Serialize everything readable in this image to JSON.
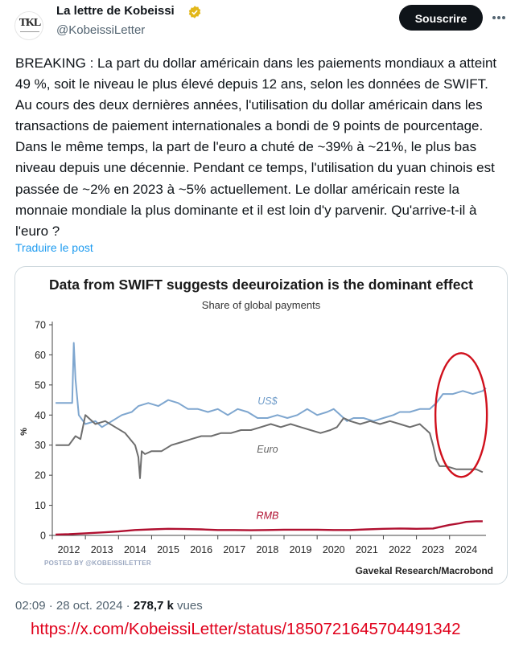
{
  "tweet": {
    "display_name": "La lettre de Kobeissi",
    "handle": "@KobeissiLetter",
    "avatar_text": "TKL",
    "follow_label": "Souscrire",
    "text": "BREAKING : La part du dollar américain dans les paiements mondiaux a atteint 49 %, soit le niveau le plus élevé depuis 12 ans, selon les données de SWIFT. Au cours des deux dernières années, l'utilisation du dollar américain dans les transactions de paiement internationales a bondi de 9 points de pourcentage. Dans le même temps, la part de l'euro a chuté de ~39% à ~21%, le plus bas niveau depuis une décennie. Pendant ce temps, l'utilisation du yuan chinois est passée de ~2% en 2023 à ~5% actuellement. Le dollar américain reste la monnaie mondiale la plus dominante et il est loin d'y parvenir. Qu'arrive-t-il à l'euro ?",
    "translate_label": "Traduire le post",
    "time": "02:09",
    "date": "28 oct. 2024",
    "views_count": "278,7 k",
    "views_label": "vues",
    "url": "https://x.com/KobeissiLetter/status/1850721645704491342"
  },
  "colors": {
    "usd": "#7ea6cf",
    "euro": "#6e6e6e",
    "rmb": "#b01030",
    "highlight_circle": "#d0101c",
    "verified": "#e2b719"
  },
  "chart_data": {
    "type": "line",
    "title": "Data from SWIFT suggests deeuroization is the dominant effect",
    "subtitle": "Share of global payments",
    "ylabel": "%",
    "xlabel": "",
    "ylim": [
      0,
      70
    ],
    "yticks": [
      0,
      10,
      20,
      30,
      40,
      50,
      60,
      70
    ],
    "xlim": [
      2011.5,
      2024.6
    ],
    "xticks": [
      "2012",
      "2013",
      "2014",
      "2015",
      "2016",
      "2017",
      "2018",
      "2019",
      "2020",
      "2021",
      "2022",
      "2023",
      "2024"
    ],
    "grid": false,
    "source": "Gavekal Research/Macrobond",
    "watermark": "POSTED BY @KOBEISSILETTER",
    "series": [
      {
        "name": "US$",
        "x": [
          2011.6,
          2012.0,
          2012.1,
          2012.15,
          2012.2,
          2012.3,
          2012.5,
          2012.8,
          2013.0,
          2013.3,
          2013.6,
          2013.9,
          2014.1,
          2014.4,
          2014.7,
          2015.0,
          2015.3,
          2015.6,
          2015.9,
          2016.2,
          2016.5,
          2016.8,
          2017.1,
          2017.4,
          2017.7,
          2018.0,
          2018.3,
          2018.6,
          2018.9,
          2019.2,
          2019.5,
          2019.8,
          2020.0,
          2020.2,
          2020.4,
          2020.6,
          2020.9,
          2021.2,
          2021.5,
          2021.8,
          2022.0,
          2022.3,
          2022.6,
          2022.9,
          2023.1,
          2023.3,
          2023.6,
          2023.9,
          2024.2,
          2024.5,
          2024.6
        ],
        "values": [
          44,
          44,
          44,
          64,
          52,
          40,
          37,
          38,
          36,
          38,
          40,
          41,
          43,
          44,
          43,
          45,
          44,
          42,
          42,
          41,
          42,
          40,
          42,
          41,
          39,
          39,
          40,
          39,
          40,
          42,
          40,
          41,
          42,
          40,
          38,
          39,
          39,
          38,
          39,
          40,
          41,
          41,
          42,
          42,
          44,
          47,
          47,
          48,
          47,
          48,
          49
        ]
      },
      {
        "name": "Euro",
        "x": [
          2011.6,
          2012.0,
          2012.2,
          2012.35,
          2012.5,
          2012.8,
          2013.1,
          2013.4,
          2013.7,
          2014.0,
          2014.1,
          2014.15,
          2014.2,
          2014.3,
          2014.5,
          2014.8,
          2015.1,
          2015.4,
          2015.7,
          2016.0,
          2016.3,
          2016.6,
          2016.9,
          2017.2,
          2017.5,
          2017.8,
          2018.1,
          2018.4,
          2018.7,
          2019.0,
          2019.3,
          2019.6,
          2019.9,
          2020.1,
          2020.3,
          2020.5,
          2020.8,
          2021.1,
          2021.4,
          2021.7,
          2022.0,
          2022.3,
          2022.6,
          2022.9,
          2023.0,
          2023.1,
          2023.2,
          2023.4,
          2023.7,
          2024.0,
          2024.3,
          2024.5
        ],
        "values": [
          30,
          30,
          33,
          32,
          40,
          37,
          38,
          36,
          34,
          30,
          26,
          19,
          28,
          27,
          28,
          28,
          30,
          31,
          32,
          33,
          33,
          34,
          34,
          35,
          35,
          36,
          37,
          36,
          37,
          36,
          35,
          34,
          35,
          36,
          39,
          38,
          37,
          38,
          37,
          38,
          37,
          36,
          37,
          34,
          30,
          25,
          23,
          23,
          22,
          22,
          22,
          21
        ]
      },
      {
        "name": "RMB",
        "x": [
          2011.6,
          2012.0,
          2012.5,
          2013.0,
          2013.5,
          2014.0,
          2014.5,
          2015.0,
          2015.5,
          2016.0,
          2016.5,
          2017.0,
          2017.5,
          2018.0,
          2018.5,
          2019.0,
          2019.5,
          2020.0,
          2020.5,
          2021.0,
          2021.5,
          2022.0,
          2022.5,
          2023.0,
          2023.5,
          2023.8,
          2024.0,
          2024.3,
          2024.5
        ],
        "values": [
          0.3,
          0.4,
          0.7,
          1.0,
          1.3,
          1.8,
          2.0,
          2.2,
          2.1,
          2.0,
          1.8,
          1.8,
          1.7,
          1.8,
          1.9,
          1.9,
          1.9,
          1.8,
          1.8,
          2.0,
          2.2,
          2.3,
          2.2,
          2.3,
          3.5,
          4.0,
          4.5,
          4.7,
          4.7
        ]
      }
    ],
    "series_labels": [
      "US$",
      "Euro",
      "RMB"
    ]
  }
}
